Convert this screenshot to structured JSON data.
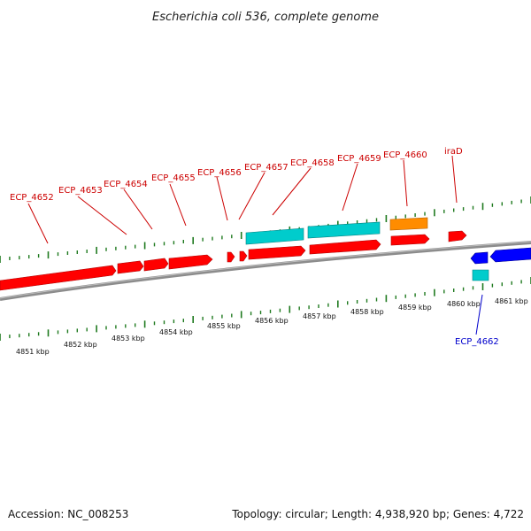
{
  "title": "Escherichia coli 536, complete genome",
  "footer": {
    "accession": "Accession: NC_008253",
    "summary": "Topology: circular; Length: 4,938,920 bp; Genes: 4,722"
  },
  "colors": {
    "backbone": "#8c8c8c",
    "ticks": "#1f7a1f",
    "label_forward": "#cc0000",
    "label_reverse": "#0000cc",
    "cds_forward": "#ff0000",
    "cds_reverse": "#0000ff",
    "rna": "#00cccc",
    "other": "#ff8c00"
  },
  "kbp_ticks": [
    "4851 kbp",
    "4852 kbp",
    "4853 kbp",
    "4854 kbp",
    "4855 kbp",
    "4856 kbp",
    "4857 kbp",
    "4858 kbp",
    "4859 kbp",
    "4860 kbp",
    "4861 kbp"
  ],
  "gene_labels": [
    {
      "text": "ECP_4652",
      "strand": "forward"
    },
    {
      "text": "ECP_4653",
      "strand": "forward"
    },
    {
      "text": "ECP_4654",
      "strand": "forward"
    },
    {
      "text": "ECP_4655",
      "strand": "forward"
    },
    {
      "text": "ECP_4656",
      "strand": "forward"
    },
    {
      "text": "ECP_4657",
      "strand": "forward"
    },
    {
      "text": "ECP_4658",
      "strand": "forward"
    },
    {
      "text": "ECP_4659",
      "strand": "forward"
    },
    {
      "text": "ECP_4660",
      "strand": "forward"
    },
    {
      "text": "iraD",
      "strand": "forward"
    },
    {
      "text": "ECP_4662",
      "strand": "reverse"
    }
  ]
}
